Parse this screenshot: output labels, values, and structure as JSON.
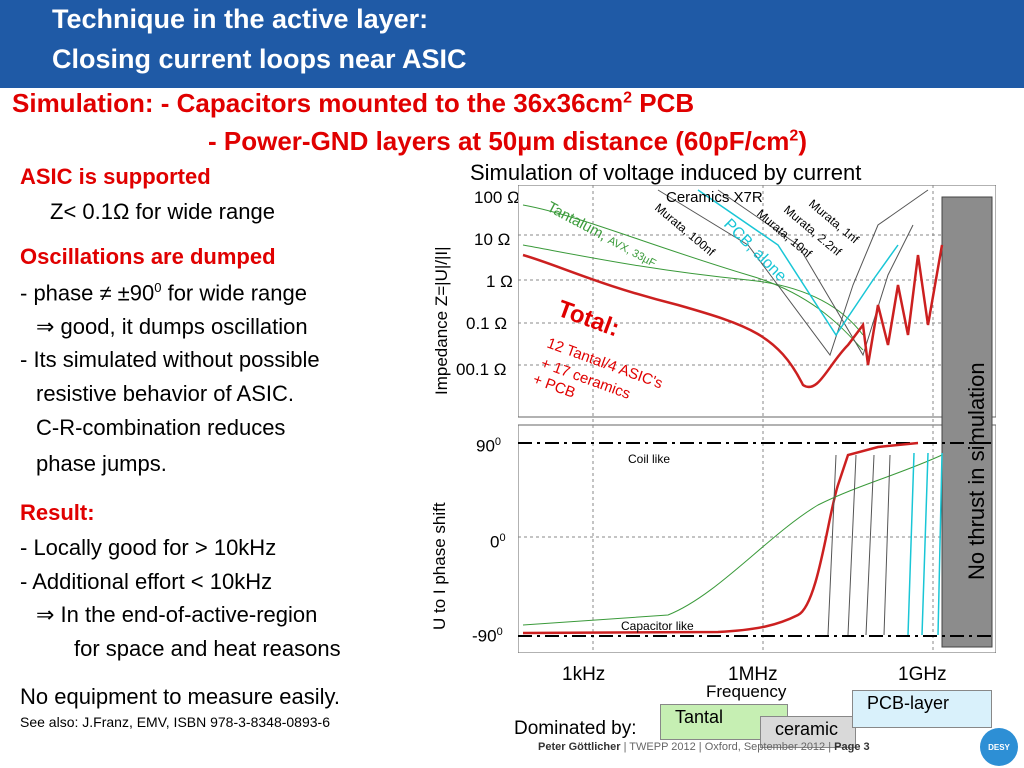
{
  "header": {
    "line1": "Technique in the active layer:",
    "line2": "Closing current loops near ASIC"
  },
  "simulation": {
    "line1_prefix": "Simulation: - Capacitors mounted to the 36x36cm",
    "line1_sup": "2",
    "line1_suffix": " PCB",
    "line2_prefix": "- Power-GND layers at 50µm distance (60pF/cm",
    "line2_sup": "2",
    "line2_suffix": ")"
  },
  "left": {
    "h1": "ASIC is supported",
    "l1": "Z< 0.1Ω for wide range",
    "h2": "Oscillations are dumped",
    "l2": "- phase ≠ ±90",
    "l2_sup": "0",
    "l2_suffix": " for wide range",
    "l3": "⇒ good, it dumps oscillation",
    "l4": "- Its simulated without possible",
    "l5": "resistive behavior of ASIC.",
    "l6": "C-R-combination reduces",
    "l7": "phase jumps.",
    "h3": "Result:",
    "l8": "- Locally good for > 10kHz",
    "l9": "- Additional effort  < 10kHz",
    "l10": "⇒ In the end-of-active-region",
    "l11": "for space and heat reasons",
    "l12": "No equipment to measure easily.",
    "l13": "See also: J.Franz, EMV, ISBN 978-3-8348-0893-6"
  },
  "plot": {
    "title": "Simulation of voltage induced by current",
    "ylabel_top": "Impedance  Z=|U|/|I|",
    "ylabel_bottom": "U to I phase shift",
    "xlabel": "Frequency",
    "z_ticks": [
      "100 Ω",
      "10 Ω",
      "1 Ω",
      "0.1 Ω",
      "00.1 Ω"
    ],
    "phase_ticks": [
      "90",
      "0",
      "-90"
    ],
    "phase_sup": "0",
    "x_ticks": [
      "1kHz",
      "1MHz",
      "1GHz"
    ],
    "labels": {
      "ceramics": "Ceramics  X7R",
      "tantalum": "Tantalum, ",
      "tantalum_small": "AVX, 33µF",
      "pcb": "PCB, alone",
      "murata1": "Murata, 1nf",
      "murata2": "Murata, 2.2nf",
      "murata3": "Murata, 10nf",
      "murata4": "Murata, 100nf",
      "total": "Total:",
      "total2": "12 Tantal/4 ASIC's",
      "total3": "+ 17 ceramics",
      "total4": "+ PCB",
      "coil": "Coil like",
      "capacitor": "Capacitor like",
      "nothrust": "No thrust in simulation"
    }
  },
  "dominated": {
    "label": "Dominated by:",
    "tantal": "Tantal",
    "ceramic": "ceramic",
    "pcb": "PCB-layer"
  },
  "footer": {
    "author": "Peter Göttlicher",
    "rest": "  |  TWEPP 2012  |  Oxford, September 2012  |  ",
    "page": "Page 3",
    "logo": "DESY"
  },
  "colors": {
    "header": "#1f5aa6",
    "red": "#e00000",
    "cyan": "#19c6d6",
    "green": "#3a9a3a"
  }
}
